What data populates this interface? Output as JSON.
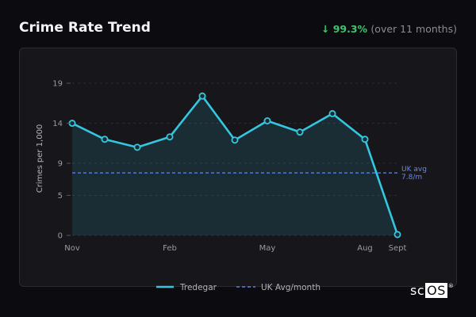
{
  "header": {
    "title": "Crime Rate Trend",
    "change_arrow": "↓",
    "change_pct": "99.3%",
    "change_period": "(over 11 months)"
  },
  "colors": {
    "series": "#35c6e0",
    "average": "#5b7fe0",
    "change_down": "#3ec46d"
  },
  "chart_data": {
    "type": "line",
    "ylabel": "Crimes per 1,000",
    "y_ticks": [
      0,
      5,
      9,
      14,
      19
    ],
    "ylim": [
      0,
      19
    ],
    "x_labels": [
      "Nov",
      "",
      "",
      "Feb",
      "",
      "",
      "May",
      "",
      "",
      "Aug",
      "Sept"
    ],
    "series": [
      {
        "name": "Tredegar",
        "values": [
          14.0,
          12.0,
          11.0,
          12.3,
          17.4,
          11.9,
          14.3,
          12.9,
          15.2,
          12.0,
          0.1
        ]
      }
    ],
    "average": {
      "name": "UK Avg/month",
      "value": 7.8,
      "label": [
        "UK avg",
        "7.8/m"
      ]
    },
    "grid": true,
    "legend": "bottom"
  },
  "brand": {
    "text": "sc",
    "box": "OS",
    "mark": "®"
  }
}
